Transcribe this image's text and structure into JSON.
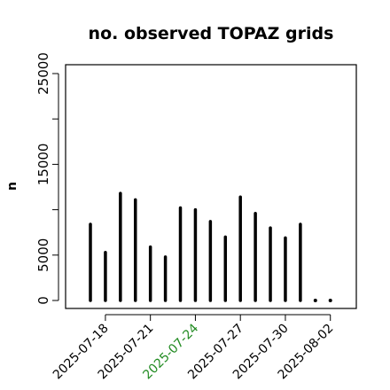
{
  "chart_data": {
    "type": "bar",
    "title": "no. observed TOPAZ grids",
    "ylabel": "n",
    "xlabel": "",
    "ylim": [
      0,
      25000
    ],
    "yticks": [
      0,
      5000,
      15000,
      25000
    ],
    "yticks_minor": [
      10000,
      20000
    ],
    "dates": [
      "2025-07-17",
      "2025-07-18",
      "2025-07-19",
      "2025-07-20",
      "2025-07-21",
      "2025-07-22",
      "2025-07-23",
      "2025-07-24",
      "2025-07-25",
      "2025-07-26",
      "2025-07-27",
      "2025-07-28",
      "2025-07-29",
      "2025-07-30",
      "2025-07-31",
      "2025-08-01",
      "2025-08-02"
    ],
    "values": [
      8400,
      5300,
      11800,
      11100,
      5900,
      4800,
      10200,
      10000,
      8700,
      7000,
      11400,
      9600,
      8000,
      6900,
      8400,
      0,
      0
    ],
    "xtick_labels": [
      {
        "date": "2025-07-18",
        "label": "2025-07-18",
        "color": "#000000"
      },
      {
        "date": "2025-07-21",
        "label": "2025-07-21",
        "color": "#000000"
      },
      {
        "date": "2025-07-24",
        "label": "2025-07-24",
        "color": "#228B22"
      },
      {
        "date": "2025-07-27",
        "label": "2025-07-27",
        "color": "#000000"
      },
      {
        "date": "2025-07-30",
        "label": "2025-07-30",
        "color": "#000000"
      },
      {
        "date": "2025-08-02",
        "label": "2025-08-02",
        "color": "#000000"
      }
    ],
    "grid": false,
    "legend": "none"
  }
}
